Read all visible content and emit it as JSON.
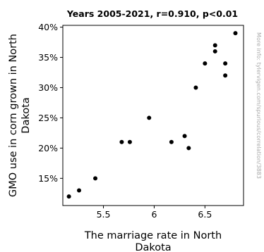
{
  "chart_data": {
    "type": "scatter",
    "title": "Years 2005-2021, r=0.910, p<0.01",
    "xlabel": [
      "The marriage rate in North",
      "Dakota"
    ],
    "ylabel": [
      "GMO use in corn grown in North",
      "Dakota"
    ],
    "side_note": "More info: tylervigen.com/spurious/correlation/3883",
    "xlim": [
      5.1,
      6.88
    ],
    "ylim": [
      10.5,
      40.3
    ],
    "x_ticks": [
      5.5,
      6,
      6.5
    ],
    "x_tick_labels": [
      "5.5",
      "6",
      "6.5"
    ],
    "y_ticks": [
      15,
      20,
      25,
      30,
      35,
      40
    ],
    "y_tick_labels": [
      "15%",
      "20%",
      "25%",
      "30%",
      "35%",
      "40%"
    ],
    "grid": false,
    "legend": "none",
    "point_color": "#000000",
    "points": [
      {
        "x": 5.16,
        "y": 12
      },
      {
        "x": 5.26,
        "y": 13
      },
      {
        "x": 5.42,
        "y": 15
      },
      {
        "x": 5.68,
        "y": 21
      },
      {
        "x": 5.76,
        "y": 21
      },
      {
        "x": 5.95,
        "y": 25
      },
      {
        "x": 6.17,
        "y": 21
      },
      {
        "x": 6.3,
        "y": 22
      },
      {
        "x": 6.34,
        "y": 20
      },
      {
        "x": 6.41,
        "y": 30
      },
      {
        "x": 6.5,
        "y": 34
      },
      {
        "x": 6.6,
        "y": 37
      },
      {
        "x": 6.6,
        "y": 36
      },
      {
        "x": 6.7,
        "y": 34
      },
      {
        "x": 6.7,
        "y": 32
      },
      {
        "x": 6.8,
        "y": 39
      }
    ]
  }
}
